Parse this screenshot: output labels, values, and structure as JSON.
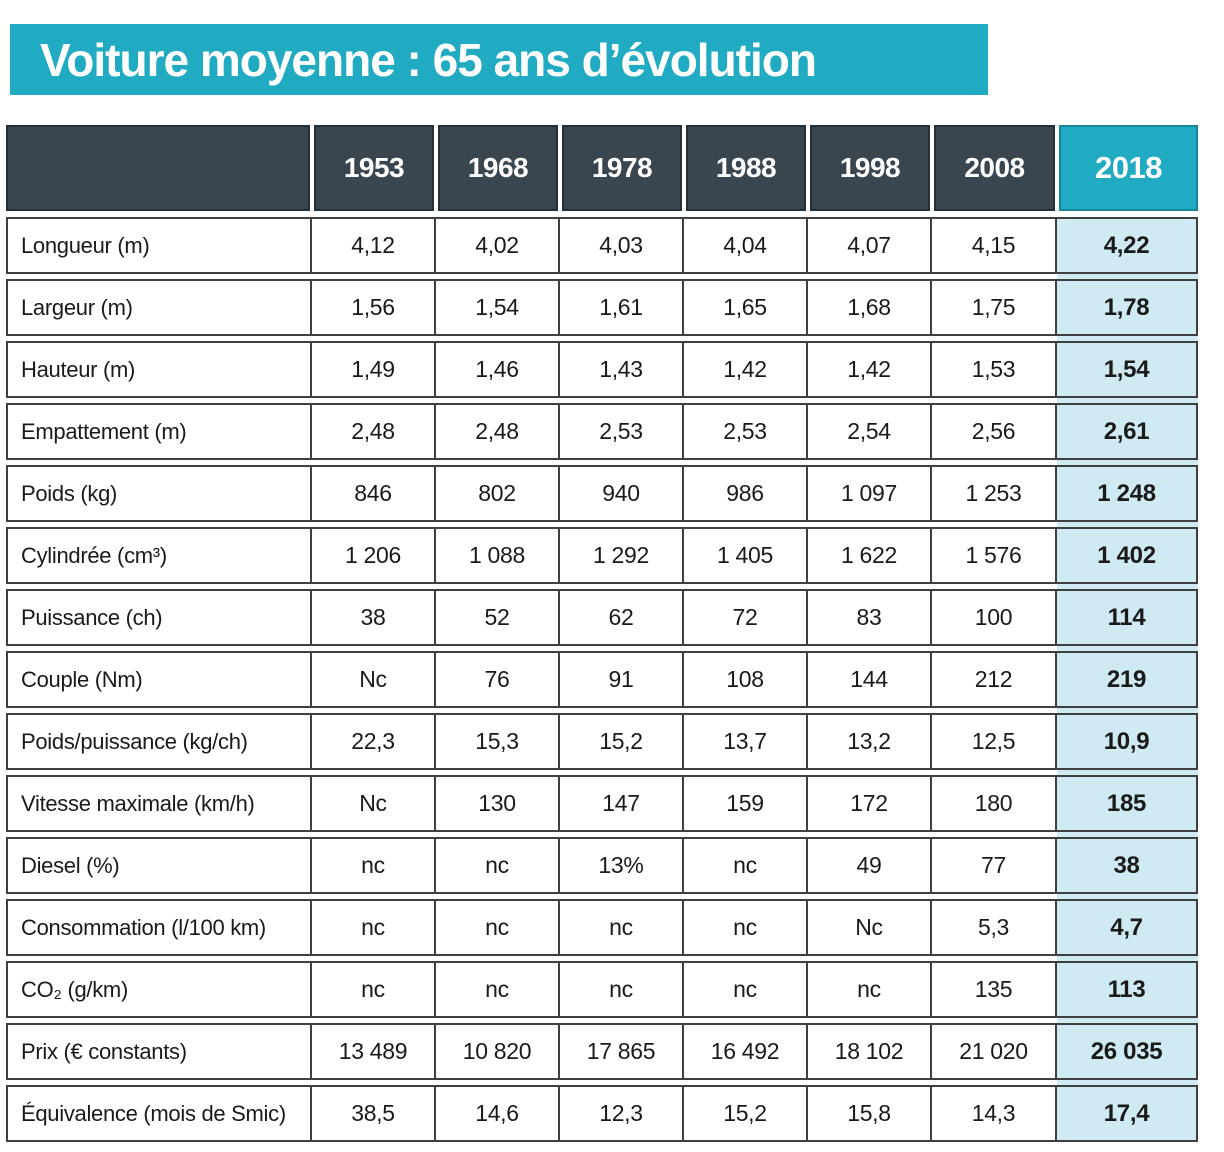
{
  "title": "Voiture moyenne : 65 ans d’évolution",
  "colors": {
    "teal": "#21abc2",
    "dark_header": "#39454f",
    "highlight_bg": "#cfeaf2",
    "border": "#3f3f3f"
  },
  "chart_data": {
    "type": "table",
    "title": "Voiture moyenne : 65 ans d’évolution",
    "columns": [
      "1953",
      "1968",
      "1978",
      "1988",
      "1998",
      "2008",
      "2018"
    ],
    "highlight_column": "2018",
    "rows": [
      {
        "label": "Longueur (m)",
        "values": [
          "4,12",
          "4,02",
          "4,03",
          "4,04",
          "4,07",
          "4,15",
          "4,22"
        ]
      },
      {
        "label": "Largeur (m)",
        "values": [
          "1,56",
          "1,54",
          "1,61",
          "1,65",
          "1,68",
          "1,75",
          "1,78"
        ]
      },
      {
        "label": "Hauteur (m)",
        "values": [
          "1,49",
          "1,46",
          "1,43",
          "1,42",
          "1,42",
          "1,53",
          "1,54"
        ]
      },
      {
        "label": "Empattement (m)",
        "values": [
          "2,48",
          "2,48",
          "2,53",
          "2,53",
          "2,54",
          "2,56",
          "2,61"
        ]
      },
      {
        "label": "Poids (kg)",
        "values": [
          "846",
          "802",
          "940",
          "986",
          "1 097",
          "1 253",
          "1 248"
        ]
      },
      {
        "label": "Cylindrée (cm³)",
        "values": [
          "1 206",
          "1 088",
          "1 292",
          "1 405",
          "1 622",
          "1 576",
          "1 402"
        ]
      },
      {
        "label": "Puissance (ch)",
        "values": [
          "38",
          "52",
          "62",
          "72",
          "83",
          "100",
          "114"
        ]
      },
      {
        "label": "Couple (Nm)",
        "values": [
          "Nc",
          "76",
          "91",
          "108",
          "144",
          "212",
          "219"
        ]
      },
      {
        "label": "Poids/puissance (kg/ch)",
        "values": [
          "22,3",
          "15,3",
          "15,2",
          "13,7",
          "13,2",
          "12,5",
          "10,9"
        ]
      },
      {
        "label": "Vitesse maximale (km/h)",
        "values": [
          "Nc",
          "130",
          "147",
          "159",
          "172",
          "180",
          "185"
        ]
      },
      {
        "label": "Diesel (%)",
        "values": [
          "nc",
          "nc",
          "13%",
          "nc",
          "49",
          "77",
          "38"
        ]
      },
      {
        "label": "Consommation (l/100 km)",
        "values": [
          "nc",
          "nc",
          "nc",
          "nc",
          "Nc",
          "5,3",
          "4,7"
        ]
      },
      {
        "label": "CO₂ (g/km)",
        "values": [
          "nc",
          "nc",
          "nc",
          "nc",
          "nc",
          "135",
          "113"
        ]
      },
      {
        "label": "Prix (€ constants)",
        "values": [
          "13 489",
          "10 820",
          "17 865",
          "16 492",
          "18 102",
          "21 020",
          "26 035"
        ]
      },
      {
        "label": "Équivalence (mois de Smic)",
        "values": [
          "38,5",
          "14,6",
          "12,3",
          "15,2",
          "15,8",
          "14,3",
          "17,4"
        ]
      }
    ]
  }
}
